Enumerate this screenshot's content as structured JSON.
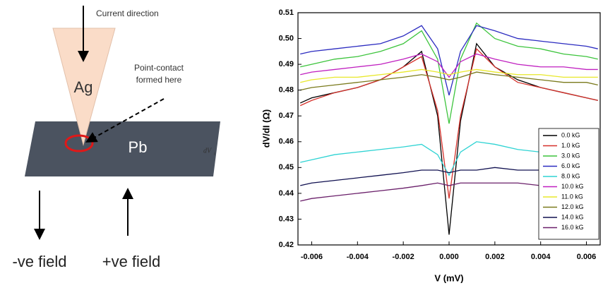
{
  "diagram": {
    "current_label": "Current direction",
    "tip_label": "Ag",
    "contact_label_1": "Point-contact",
    "contact_label_2": "formed here",
    "sample_label": "Pb",
    "stray_label": "dV",
    "stray_sub": "i",
    "neg_field": "-ve field",
    "pos_field": "+ve field"
  },
  "chart_data": {
    "type": "line",
    "x_label": "V (mV)",
    "y_label": "dV/dI (Ω)",
    "x": [
      -0.0065,
      -0.006,
      -0.005,
      -0.004,
      -0.003,
      -0.002,
      -0.0012,
      -0.0005,
      0,
      0.0005,
      0.0012,
      0.002,
      0.003,
      0.004,
      0.005,
      0.006,
      0.0065
    ],
    "xlim": [
      -0.0066,
      0.0066
    ],
    "xticks": [
      -0.006,
      -0.004,
      -0.002,
      {
        "value": 0,
        "label": "0.000"
      },
      {
        "value": 0.002,
        "label": "0.002"
      },
      {
        "value": 0.004,
        "label": "0.004"
      },
      {
        "value": 0.006,
        "label": "0.006"
      }
    ],
    "ylim": [
      0.42,
      0.51
    ],
    "yticks": [
      {
        "value": 0.42,
        "label": "0.42"
      },
      0.43,
      0.44,
      0.45,
      0.46,
      0.47,
      0.48,
      0.49,
      {
        "value": 0.5,
        "label": "0.50"
      },
      0.51
    ],
    "legend": "lower-right",
    "series": [
      {
        "name": "0.0 kG",
        "color": "#000000",
        "values": [
          0.475,
          0.477,
          0.479,
          0.481,
          0.484,
          0.489,
          0.495,
          0.47,
          0.424,
          0.468,
          0.498,
          0.489,
          0.484,
          0.481,
          0.479,
          0.477,
          0.476
        ]
      },
      {
        "name": "1.0 kG",
        "color": "#d6312b",
        "values": [
          0.474,
          0.476,
          0.479,
          0.481,
          0.484,
          0.489,
          0.493,
          0.472,
          0.438,
          0.47,
          0.496,
          0.489,
          0.483,
          0.481,
          0.479,
          0.477,
          0.476
        ]
      },
      {
        "name": "3.0 kG",
        "color": "#3cc43c",
        "values": [
          0.489,
          0.49,
          0.492,
          0.493,
          0.495,
          0.498,
          0.503,
          0.492,
          0.467,
          0.492,
          0.506,
          0.5,
          0.497,
          0.496,
          0.494,
          0.493,
          0.492
        ]
      },
      {
        "name": "6.0 kG",
        "color": "#2b2bc0",
        "values": [
          0.494,
          0.495,
          0.496,
          0.497,
          0.498,
          0.501,
          0.505,
          0.496,
          0.478,
          0.495,
          0.505,
          0.503,
          0.5,
          0.499,
          0.498,
          0.497,
          0.496
        ]
      },
      {
        "name": "8.0 kG",
        "color": "#2ed3d3",
        "values": [
          0.452,
          0.453,
          0.455,
          0.456,
          0.457,
          0.458,
          0.459,
          0.455,
          0.447,
          0.456,
          0.46,
          0.459,
          0.457,
          0.456,
          0.456,
          0.455,
          0.455
        ]
      },
      {
        "name": "10.0 kG",
        "color": "#c020c0",
        "values": [
          0.486,
          0.487,
          0.488,
          0.489,
          0.49,
          0.492,
          0.494,
          0.491,
          0.485,
          0.491,
          0.494,
          0.492,
          0.49,
          0.489,
          0.489,
          0.488,
          0.488
        ]
      },
      {
        "name": "11.0 kG",
        "color": "#e8e82a",
        "values": [
          0.483,
          0.484,
          0.485,
          0.485,
          0.486,
          0.487,
          0.488,
          0.487,
          0.486,
          0.487,
          0.488,
          0.487,
          0.486,
          0.486,
          0.485,
          0.485,
          0.485
        ]
      },
      {
        "name": "12.0 kG",
        "color": "#7a7a1c",
        "values": [
          0.48,
          0.481,
          0.482,
          0.483,
          0.484,
          0.485,
          0.486,
          0.485,
          0.484,
          0.485,
          0.487,
          0.486,
          0.485,
          0.484,
          0.483,
          0.483,
          0.482
        ]
      },
      {
        "name": "14.0 kG",
        "color": "#101050",
        "values": [
          0.443,
          0.444,
          0.445,
          0.446,
          0.447,
          0.448,
          0.449,
          0.449,
          0.448,
          0.449,
          0.449,
          0.45,
          0.449,
          0.449,
          0.449,
          0.448,
          0.448
        ]
      },
      {
        "name": "16.0 kG",
        "color": "#6a1f6a",
        "values": [
          0.437,
          0.438,
          0.439,
          0.44,
          0.441,
          0.442,
          0.443,
          0.444,
          0.443,
          0.444,
          0.444,
          0.444,
          0.444,
          0.443,
          0.443,
          0.442,
          0.442
        ]
      }
    ]
  }
}
